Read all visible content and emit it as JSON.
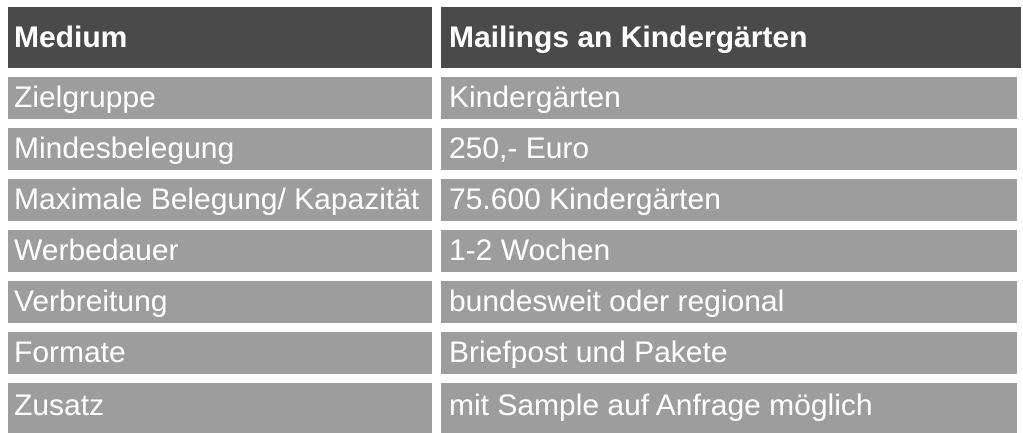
{
  "table": {
    "header": {
      "col1": "Medium",
      "col2": "Mailings an Kindergärten"
    },
    "rows": [
      {
        "label": "Zielgruppe",
        "value": "Kindergärten"
      },
      {
        "label": "Mindesbelegung",
        "value": "250,- Euro"
      },
      {
        "label": "Maximale Belegung/ Kapazität",
        "value": "75.600 Kindergärten"
      },
      {
        "label": "Werbedauer",
        "value": "1-2 Wochen"
      },
      {
        "label": "Verbreitung",
        "value": "bundesweit oder regional"
      },
      {
        "label": "Formate",
        "value": "Briefpost und Pakete"
      },
      {
        "label": "Zusatz",
        "value": "mit Sample auf Anfrage möglich"
      }
    ],
    "colors": {
      "header_bg": "#4a4a4a",
      "row_bg": "#9d9d9d",
      "text": "#ffffff",
      "gap": "#ffffff"
    }
  }
}
